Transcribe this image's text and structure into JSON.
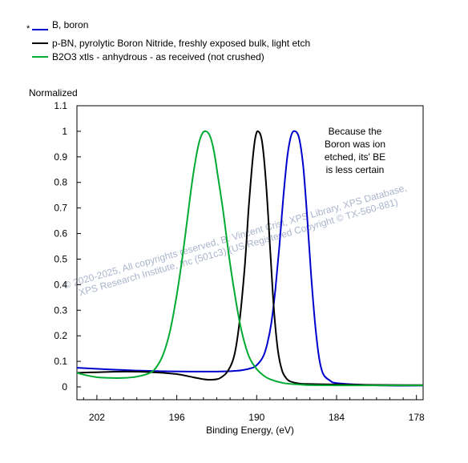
{
  "chart_data": {
    "type": "line",
    "xlabel": "Binding Energy, (eV)",
    "ylabel": "Normalized",
    "xlim": [
      203.5,
      177.5
    ],
    "ylim": [
      0,
      1.1
    ],
    "x_reversed": true,
    "xticks": [
      202,
      196,
      190,
      184,
      178
    ],
    "yticks": [
      0,
      0.1,
      0.2,
      0.3,
      0.4,
      0.5,
      0.6,
      0.7,
      0.8,
      0.9,
      1,
      1.1
    ],
    "grid": false,
    "legend_position": "top-left",
    "series": [
      {
        "name": "B, boron",
        "color": "#0000cc",
        "x": [
          203.5,
          201,
          199,
          197,
          195,
          193,
          191.5,
          190.5,
          190,
          189.5,
          189.2,
          188.9,
          188.6,
          188.3,
          188,
          187.7,
          187.4,
          187.1,
          186.8,
          186.5,
          186.2,
          185.9,
          185.6,
          185.3,
          185,
          184.5,
          184,
          182,
          180,
          177.5
        ],
        "y": [
          0.075,
          0.068,
          0.064,
          0.061,
          0.06,
          0.06,
          0.063,
          0.072,
          0.085,
          0.12,
          0.17,
          0.25,
          0.38,
          0.55,
          0.74,
          0.9,
          0.985,
          1.0,
          0.97,
          0.86,
          0.66,
          0.43,
          0.24,
          0.11,
          0.05,
          0.025,
          0.015,
          0.008,
          0.005,
          0.005
        ]
      },
      {
        "name": "p-BN, pyrolytic Boron Nitride, freshly exposed bulk, light etch",
        "color": "#000000",
        "x": [
          203.5,
          200,
          198,
          196,
          195,
          194,
          193.5,
          193,
          192.7,
          192.2,
          191.7,
          191.3,
          190.9,
          190.6,
          190.3,
          190.1,
          189.9,
          189.6,
          189.3,
          189,
          188.7,
          188.4,
          188.1,
          187.8,
          187.5,
          187,
          186.5,
          185,
          182,
          177.5
        ],
        "y": [
          0.055,
          0.06,
          0.058,
          0.05,
          0.04,
          0.03,
          0.028,
          0.03,
          0.036,
          0.06,
          0.12,
          0.25,
          0.47,
          0.7,
          0.89,
          0.975,
          1.0,
          0.96,
          0.8,
          0.55,
          0.3,
          0.14,
          0.065,
          0.035,
          0.022,
          0.015,
          0.012,
          0.01,
          0.008,
          0.007
        ]
      },
      {
        "name": "B2O3 xtls - anhydrous - as received (not crushed)",
        "color": "#00aa33",
        "x": [
          203.5,
          203,
          202,
          201,
          200,
          199,
          198,
          197.5,
          197,
          196.5,
          196,
          195.6,
          195.2,
          194.8,
          194.4,
          194.1,
          193.8,
          193.5,
          193.2,
          192.9,
          192.5,
          192.1,
          191.7,
          191.3,
          190.9,
          190.5,
          190,
          189.5,
          189,
          188,
          187,
          186,
          184,
          182,
          180,
          177.5
        ],
        "y": [
          0.055,
          0.048,
          0.038,
          0.035,
          0.035,
          0.04,
          0.055,
          0.08,
          0.13,
          0.22,
          0.36,
          0.5,
          0.66,
          0.82,
          0.94,
          0.99,
          1.0,
          0.98,
          0.92,
          0.82,
          0.68,
          0.52,
          0.38,
          0.26,
          0.17,
          0.11,
          0.07,
          0.045,
          0.03,
          0.015,
          0.01,
          0.007,
          0.006,
          0.006,
          0.006,
          0.006
        ]
      }
    ],
    "annotations": [
      "Because the",
      "Boron was ion",
      "etched, its' BE",
      "is less certain"
    ],
    "legend_marker": "*",
    "watermark": [
      "©  2020-2025,  All copyrights reserved,   B. Vincent Crist,  XPS Library, XPS Database,",
      "XPS Research Institute, Inc (501c3)   (US Registered Copyright © TX-560-881)"
    ]
  }
}
